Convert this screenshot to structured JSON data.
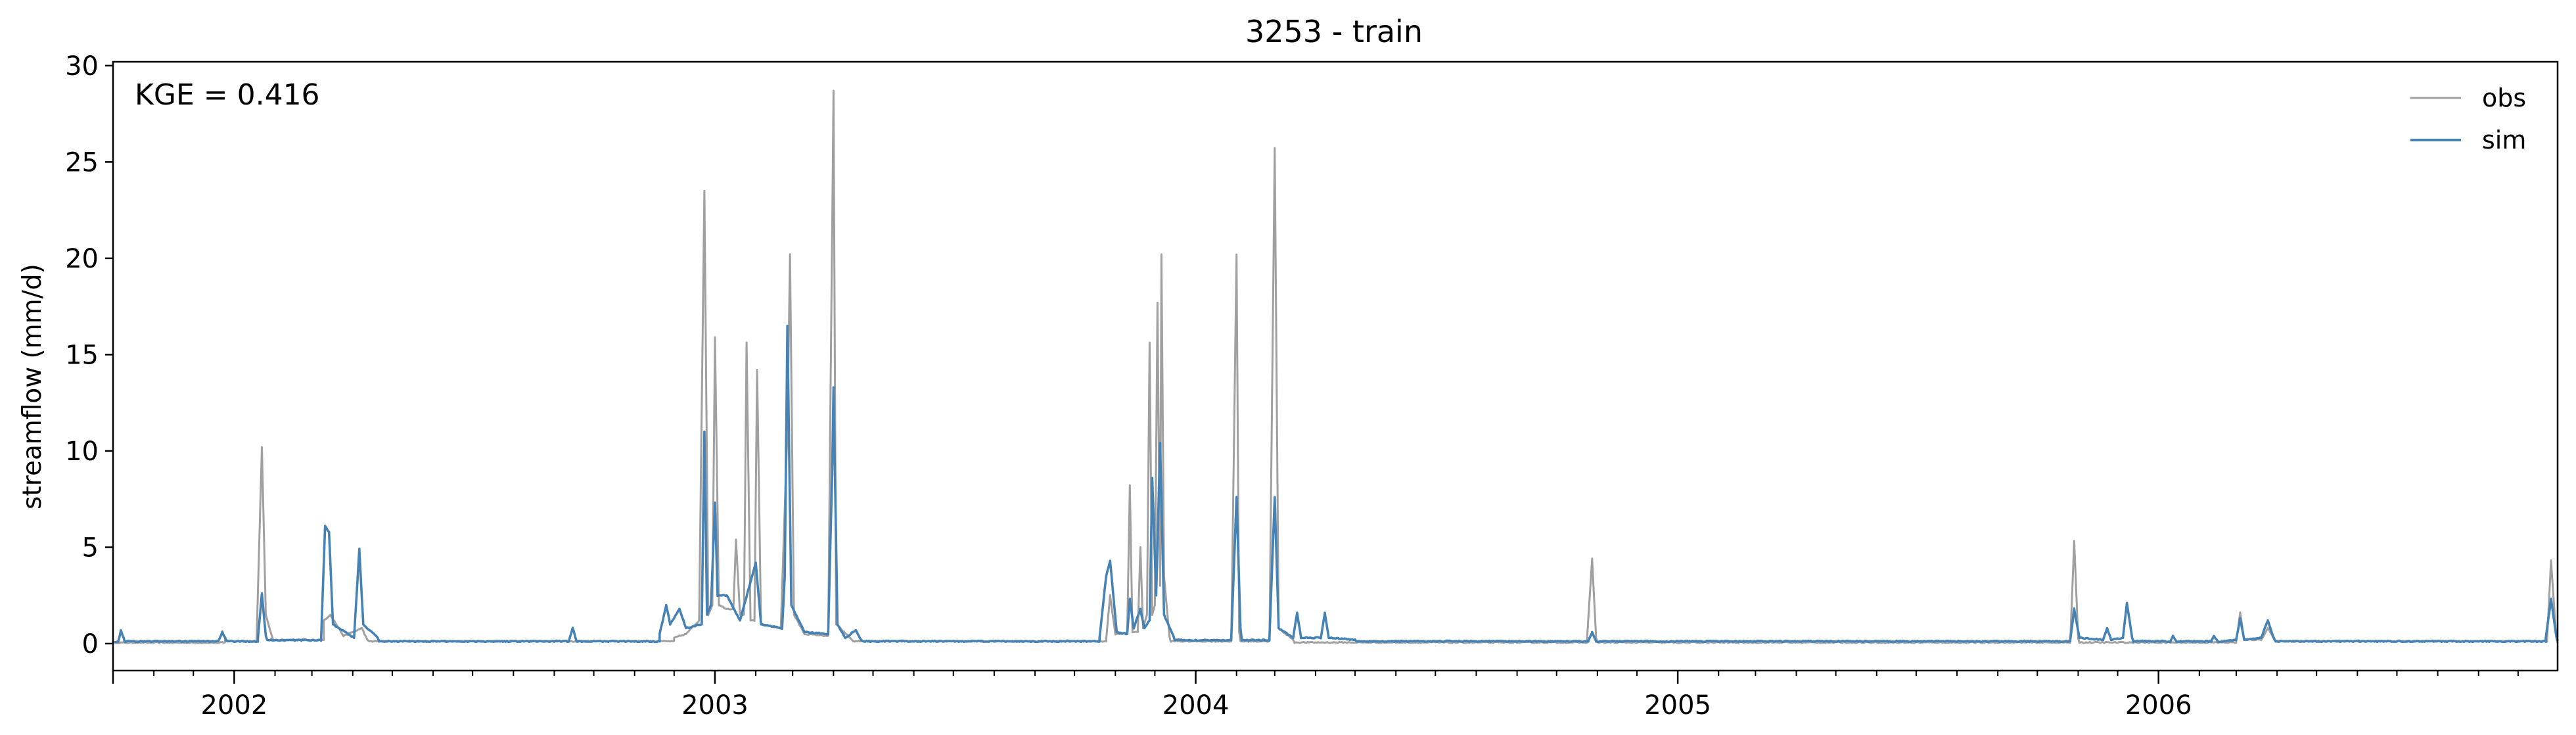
{
  "chart_data": {
    "type": "line",
    "title": "3253 - train",
    "xlabel": "",
    "ylabel": "streamflow (mm/d)",
    "annotation": "KGE = 0.416",
    "legend_position": "top-right",
    "grid": false,
    "xlim": [
      "2001-10-01",
      "2006-10-31"
    ],
    "ylim": [
      -1.4,
      30.2
    ],
    "x_ticks": [
      {
        "label": "2002",
        "date": "2002-01-01"
      },
      {
        "label": "2003",
        "date": "2003-01-01"
      },
      {
        "label": "2004",
        "date": "2004-01-01"
      },
      {
        "label": "2005",
        "date": "2005-01-01"
      },
      {
        "label": "2006",
        "date": "2006-01-01"
      }
    ],
    "y_ticks": [
      0,
      5,
      10,
      15,
      20,
      25,
      30
    ],
    "series": [
      {
        "name": "obs",
        "color": "#a0a0a0",
        "baseline": 0.05,
        "points": [
          [
            "2001-10-01",
            0.05
          ],
          [
            "2001-12-25",
            0.25
          ],
          [
            "2002-01-18",
            0.2
          ],
          [
            "2002-01-22",
            10.2
          ],
          [
            "2002-01-25",
            1.5
          ],
          [
            "2002-01-30",
            0.3
          ],
          [
            "2002-03-10",
            1.2
          ],
          [
            "2002-03-15",
            1.5
          ],
          [
            "2002-03-25",
            0.4
          ],
          [
            "2002-04-08",
            0.8
          ],
          [
            "2002-04-12",
            0.2
          ],
          [
            "2002-12-01",
            0.3
          ],
          [
            "2002-12-10",
            0.5
          ],
          [
            "2002-12-20",
            1.2
          ],
          [
            "2002-12-24",
            23.5
          ],
          [
            "2002-12-27",
            1.5
          ],
          [
            "2002-12-30",
            2.0
          ],
          [
            "2003-01-01",
            15.9
          ],
          [
            "2003-01-04",
            2.0
          ],
          [
            "2003-01-10",
            1.8
          ],
          [
            "2003-01-15",
            1.8
          ],
          [
            "2003-01-17",
            5.4
          ],
          [
            "2003-01-20",
            1.5
          ],
          [
            "2003-01-23",
            1.5
          ],
          [
            "2003-01-25",
            15.6
          ],
          [
            "2003-01-28",
            1.2
          ],
          [
            "2003-01-31",
            1.2
          ],
          [
            "2003-02-02",
            14.2
          ],
          [
            "2003-02-05",
            1.0
          ],
          [
            "2003-02-20",
            0.8
          ],
          [
            "2003-02-22",
            5.0
          ],
          [
            "2003-02-25",
            11.0
          ],
          [
            "2003-02-27",
            20.2
          ],
          [
            "2003-03-02",
            1.5
          ],
          [
            "2003-03-10",
            0.5
          ],
          [
            "2003-03-28",
            0.4
          ],
          [
            "2003-04-01",
            28.7
          ],
          [
            "2003-04-03",
            1.0
          ],
          [
            "2003-04-15",
            0.2
          ],
          [
            "2003-10-25",
            0.2
          ],
          [
            "2003-10-28",
            2.5
          ],
          [
            "2003-11-01",
            0.5
          ],
          [
            "2003-11-10",
            0.5
          ],
          [
            "2003-11-12",
            8.2
          ],
          [
            "2003-11-14",
            0.6
          ],
          [
            "2003-11-18",
            0.6
          ],
          [
            "2003-11-20",
            5.0
          ],
          [
            "2003-11-22",
            0.8
          ],
          [
            "2003-11-25",
            1.5
          ],
          [
            "2003-11-27",
            15.6
          ],
          [
            "2003-11-29",
            1.5
          ],
          [
            "2003-12-01",
            2.0
          ],
          [
            "2003-12-03",
            17.7
          ],
          [
            "2003-12-05",
            3.0
          ],
          [
            "2003-12-06",
            20.2
          ],
          [
            "2003-12-08",
            3.5
          ],
          [
            "2003-12-12",
            0.4
          ],
          [
            "2004-01-28",
            0.2
          ],
          [
            "2004-02-01",
            20.2
          ],
          [
            "2004-02-03",
            0.6
          ],
          [
            "2004-02-26",
            0.2
          ],
          [
            "2004-03-01",
            25.7
          ],
          [
            "2004-03-04",
            0.8
          ],
          [
            "2004-03-15",
            0.2
          ],
          [
            "2004-10-24",
            0.1
          ],
          [
            "2004-10-28",
            4.4
          ],
          [
            "2004-10-31",
            0.3
          ],
          [
            "2005-10-26",
            0.1
          ],
          [
            "2005-10-29",
            5.3
          ],
          [
            "2005-11-01",
            0.3
          ],
          [
            "2006-03-01",
            0.1
          ],
          [
            "2006-03-04",
            1.6
          ],
          [
            "2006-03-07",
            0.2
          ],
          [
            "2006-03-20",
            0.2
          ],
          [
            "2006-03-25",
            0.8
          ],
          [
            "2006-03-30",
            0.2
          ],
          [
            "2006-10-23",
            0.2
          ],
          [
            "2006-10-26",
            4.3
          ],
          [
            "2006-10-30",
            0.3
          ]
        ]
      },
      {
        "name": "sim",
        "color": "#4682b4",
        "baseline": 0.12,
        "points": [
          [
            "2001-10-01",
            0.1
          ],
          [
            "2001-10-05",
            0.1
          ],
          [
            "2001-10-07",
            0.7
          ],
          [
            "2001-10-10",
            0.1
          ],
          [
            "2001-12-20",
            0.15
          ],
          [
            "2001-12-23",
            0.6
          ],
          [
            "2001-12-26",
            0.15
          ],
          [
            "2002-01-19",
            0.3
          ],
          [
            "2002-01-22",
            2.6
          ],
          [
            "2002-01-25",
            0.4
          ],
          [
            "2002-03-08",
            0.3
          ],
          [
            "2002-03-11",
            6.1
          ],
          [
            "2002-03-14",
            5.8
          ],
          [
            "2002-03-17",
            1.0
          ],
          [
            "2002-04-02",
            0.3
          ],
          [
            "2002-04-06",
            4.9
          ],
          [
            "2002-04-09",
            1.0
          ],
          [
            "2002-04-20",
            0.3
          ],
          [
            "2002-09-12",
            0.1
          ],
          [
            "2002-09-15",
            0.8
          ],
          [
            "2002-09-18",
            0.1
          ],
          [
            "2002-11-20",
            0.5
          ],
          [
            "2002-11-25",
            2.0
          ],
          [
            "2002-11-28",
            1.0
          ],
          [
            "2002-12-05",
            1.8
          ],
          [
            "2002-12-10",
            0.8
          ],
          [
            "2002-12-22",
            1.0
          ],
          [
            "2002-12-24",
            11.0
          ],
          [
            "2002-12-26",
            1.5
          ],
          [
            "2002-12-29",
            2.0
          ],
          [
            "2003-01-01",
            7.3
          ],
          [
            "2003-01-03",
            2.5
          ],
          [
            "2003-01-10",
            2.5
          ],
          [
            "2003-01-20",
            1.2
          ],
          [
            "2003-02-01",
            4.2
          ],
          [
            "2003-02-05",
            1.0
          ],
          [
            "2003-02-21",
            0.8
          ],
          [
            "2003-02-23",
            3.5
          ],
          [
            "2003-02-25",
            16.5
          ],
          [
            "2003-02-28",
            2.0
          ],
          [
            "2003-03-10",
            0.6
          ],
          [
            "2003-03-28",
            0.5
          ],
          [
            "2003-03-31",
            8.9
          ],
          [
            "2003-04-01",
            13.3
          ],
          [
            "2003-04-04",
            1.0
          ],
          [
            "2003-04-10",
            0.3
          ],
          [
            "2003-04-18",
            0.7
          ],
          [
            "2003-04-22",
            0.2
          ],
          [
            "2003-10-20",
            0.3
          ],
          [
            "2003-10-25",
            3.5
          ],
          [
            "2003-10-28",
            4.3
          ],
          [
            "2003-11-02",
            0.6
          ],
          [
            "2003-11-10",
            0.5
          ],
          [
            "2003-11-12",
            2.3
          ],
          [
            "2003-11-15",
            0.8
          ],
          [
            "2003-11-20",
            1.8
          ],
          [
            "2003-11-23",
            0.8
          ],
          [
            "2003-11-27",
            1.2
          ],
          [
            "2003-11-29",
            8.6
          ],
          [
            "2003-12-02",
            2.5
          ],
          [
            "2003-12-05",
            10.4
          ],
          [
            "2003-12-08",
            1.5
          ],
          [
            "2003-12-15",
            0.4
          ],
          [
            "2004-01-28",
            0.3
          ],
          [
            "2004-02-01",
            7.6
          ],
          [
            "2004-02-04",
            0.8
          ],
          [
            "2004-02-26",
            0.3
          ],
          [
            "2004-03-01",
            7.6
          ],
          [
            "2004-03-04",
            0.8
          ],
          [
            "2004-03-15",
            0.3
          ],
          [
            "2004-03-18",
            1.6
          ],
          [
            "2004-03-21",
            0.3
          ],
          [
            "2004-04-05",
            0.3
          ],
          [
            "2004-04-08",
            1.6
          ],
          [
            "2004-04-11",
            0.3
          ],
          [
            "2004-05-01",
            0.2
          ],
          [
            "2004-10-25",
            0.1
          ],
          [
            "2004-10-28",
            0.6
          ],
          [
            "2004-10-31",
            0.1
          ],
          [
            "2005-10-26",
            0.2
          ],
          [
            "2005-10-29",
            1.8
          ],
          [
            "2005-11-02",
            0.3
          ],
          [
            "2005-11-20",
            0.2
          ],
          [
            "2005-11-23",
            0.8
          ],
          [
            "2005-11-26",
            0.2
          ],
          [
            "2005-12-05",
            0.3
          ],
          [
            "2005-12-08",
            2.1
          ],
          [
            "2005-12-12",
            0.3
          ],
          [
            "2006-01-10",
            0.1
          ],
          [
            "2006-01-12",
            0.4
          ],
          [
            "2006-01-15",
            0.1
          ],
          [
            "2006-02-10",
            0.1
          ],
          [
            "2006-02-12",
            0.4
          ],
          [
            "2006-02-15",
            0.1
          ],
          [
            "2006-03-01",
            0.2
          ],
          [
            "2006-03-04",
            1.3
          ],
          [
            "2006-03-07",
            0.2
          ],
          [
            "2006-03-20",
            0.3
          ],
          [
            "2006-03-25",
            1.2
          ],
          [
            "2006-03-30",
            0.2
          ],
          [
            "2006-10-22",
            0.3
          ],
          [
            "2006-10-26",
            2.3
          ],
          [
            "2006-10-30",
            0.4
          ]
        ]
      }
    ]
  }
}
